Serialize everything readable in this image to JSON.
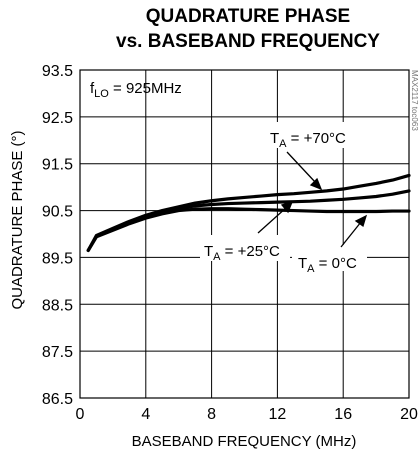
{
  "chart_data": {
    "type": "line",
    "title_line1": "QUADRATURE PHASE",
    "title_line2": "vs. BASEBAND FREQUENCY",
    "xlabel": "BASEBAND FREQUENCY (MHz)",
    "ylabel": "QUADRATURE PHASE (°)",
    "xlim": [
      0,
      20
    ],
    "ylim": [
      86.5,
      93.5
    ],
    "xticks": [
      0,
      4,
      8,
      12,
      16,
      20
    ],
    "yticks": [
      86.5,
      87.5,
      88.5,
      89.5,
      90.5,
      91.5,
      92.5,
      93.5
    ],
    "grid": true,
    "condition": {
      "main": "f",
      "sub": "LO",
      "rest": " = 925MHz"
    },
    "watermark": "MAX2117 toc063",
    "series": [
      {
        "name": "T_A = +70°C",
        "label_main": "T",
        "label_sub": "A",
        "label_rest": " = +70°C",
        "x": [
          0.5,
          1,
          2,
          3,
          4,
          5,
          6,
          7,
          8,
          9,
          10,
          11,
          12,
          13,
          14,
          15,
          16,
          17,
          18,
          19,
          20
        ],
        "y": [
          89.65,
          89.97,
          90.12,
          90.27,
          90.4,
          90.5,
          90.58,
          90.66,
          90.71,
          90.75,
          90.78,
          90.81,
          90.84,
          90.86,
          90.89,
          90.92,
          90.96,
          91.02,
          91.08,
          91.15,
          91.25
        ]
      },
      {
        "name": "T_A = +25°C",
        "label_main": "T",
        "label_sub": "A",
        "label_rest": " = +25°C",
        "x": [
          0.5,
          1,
          2,
          3,
          4,
          5,
          6,
          7,
          8,
          9,
          10,
          11,
          12,
          13,
          14,
          15,
          16,
          17,
          18,
          19,
          20
        ],
        "y": [
          89.65,
          89.95,
          90.1,
          90.24,
          90.37,
          90.47,
          90.55,
          90.6,
          90.63,
          90.65,
          90.66,
          90.67,
          90.68,
          90.69,
          90.7,
          90.72,
          90.74,
          90.77,
          90.8,
          90.85,
          90.92
        ]
      },
      {
        "name": "T_A = 0°C",
        "label_main": "T",
        "label_sub": "A",
        "label_rest": " = 0°C",
        "x": [
          0.5,
          1,
          2,
          3,
          4,
          5,
          6,
          7,
          8,
          9,
          10,
          11,
          12,
          13,
          14,
          15,
          16,
          17,
          18,
          19,
          20
        ],
        "y": [
          89.65,
          89.94,
          90.08,
          90.22,
          90.34,
          90.43,
          90.5,
          90.53,
          90.54,
          90.54,
          90.53,
          90.52,
          90.51,
          90.5,
          90.49,
          90.48,
          90.48,
          90.48,
          90.48,
          90.49,
          90.49
        ]
      }
    ]
  }
}
